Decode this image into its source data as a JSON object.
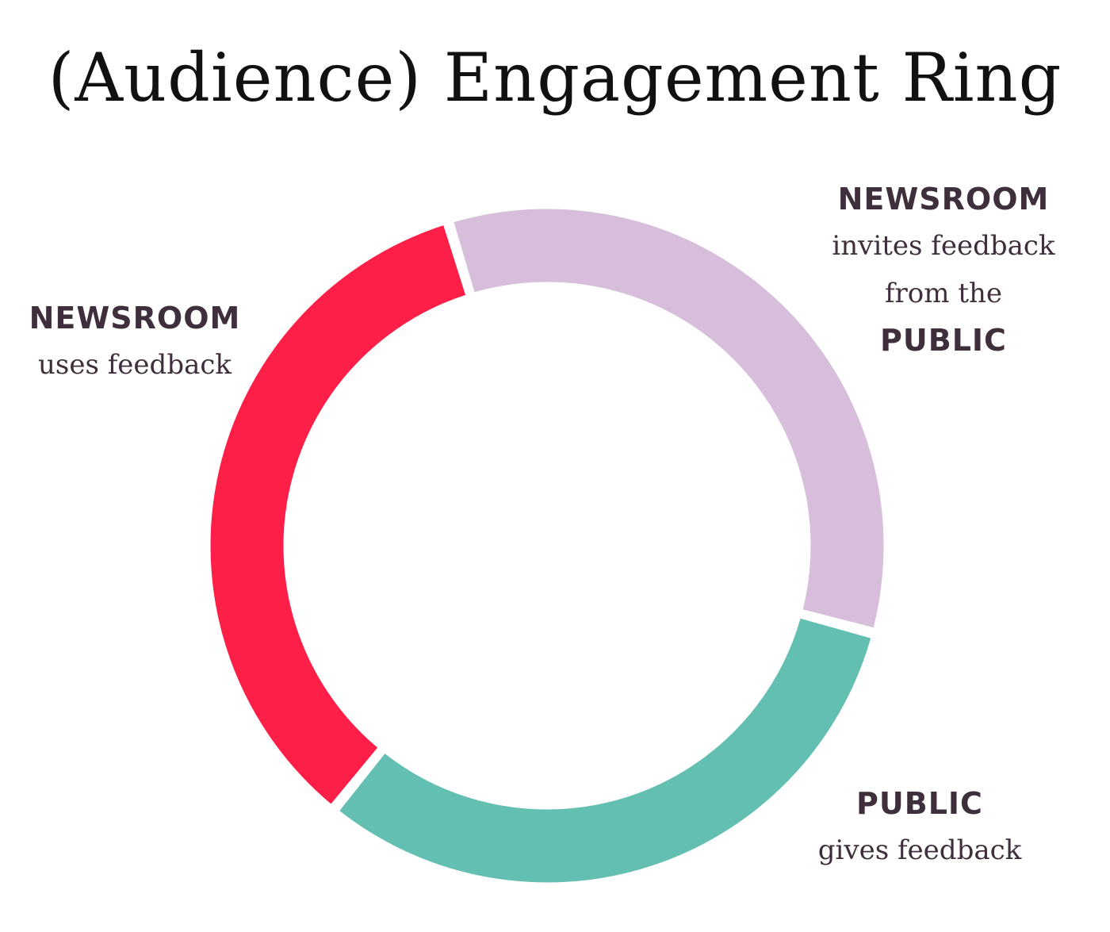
{
  "title": "(Audience) Engagement Ring",
  "colors": {
    "invite": "#d7bedb",
    "gives": "#63bfb1",
    "uses": "#fd1f47",
    "text": "#3f2f3c"
  },
  "segments": [
    {
      "id": "invite",
      "line1": "NEWSROOM",
      "line2": "invites feedback",
      "line3": "from the",
      "line4": "PUBLIC"
    },
    {
      "id": "gives",
      "line1": "PUBLIC",
      "line2": "gives feedback"
    },
    {
      "id": "uses",
      "line1": "NEWSROOM",
      "line2": "uses feedback"
    }
  ]
}
